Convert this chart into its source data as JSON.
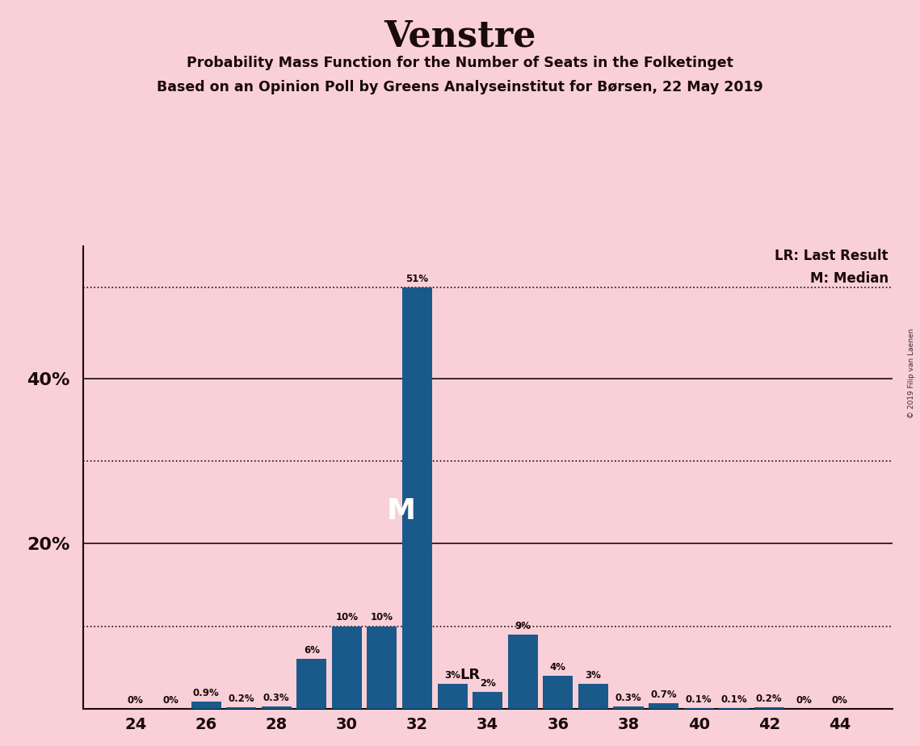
{
  "title": "Venstre",
  "subtitle1": "Probability Mass Function for the Number of Seats in the Folketinget",
  "subtitle2": "Based on an Opinion Poll by Greens Analyseinstitut for Børsen, 22 May 2019",
  "watermark": "© 2019 Filip van Laenen",
  "seats": [
    24,
    25,
    26,
    27,
    28,
    29,
    30,
    31,
    32,
    33,
    34,
    35,
    36,
    37,
    38,
    39,
    40,
    41,
    42,
    43,
    44
  ],
  "probabilities": [
    0.0,
    0.0,
    0.9,
    0.2,
    0.3,
    6.0,
    10.0,
    10.0,
    51.0,
    3.0,
    2.0,
    9.0,
    4.0,
    3.0,
    0.3,
    0.7,
    0.1,
    0.1,
    0.2,
    0.0,
    0.0
  ],
  "labels": [
    "0%",
    "0%",
    "0.9%",
    "0.2%",
    "0.3%",
    "6%",
    "10%",
    "10%",
    "51%",
    "3%",
    "2%",
    "9%",
    "4%",
    "3%",
    "0.3%",
    "0.7%",
    "0.1%",
    "0.1%",
    "0.2%",
    "0%",
    "0%"
  ],
  "bar_color": "#1a5a8a",
  "background_color": "#f9d0d8",
  "median_seat": 32,
  "last_result_seat": 34,
  "ylim": [
    0,
    56
  ],
  "xlabel_seats": [
    24,
    26,
    28,
    30,
    32,
    34,
    36,
    38,
    40,
    42,
    44
  ],
  "solid_lines": [
    20,
    40
  ],
  "dotted_lines": [
    10,
    30,
    51
  ],
  "ytick_labels": {
    "0": "",
    "10": "",
    "20": "20%",
    "30": "",
    "40": "40%",
    "50": ""
  },
  "text_color": "#1a0a0a"
}
